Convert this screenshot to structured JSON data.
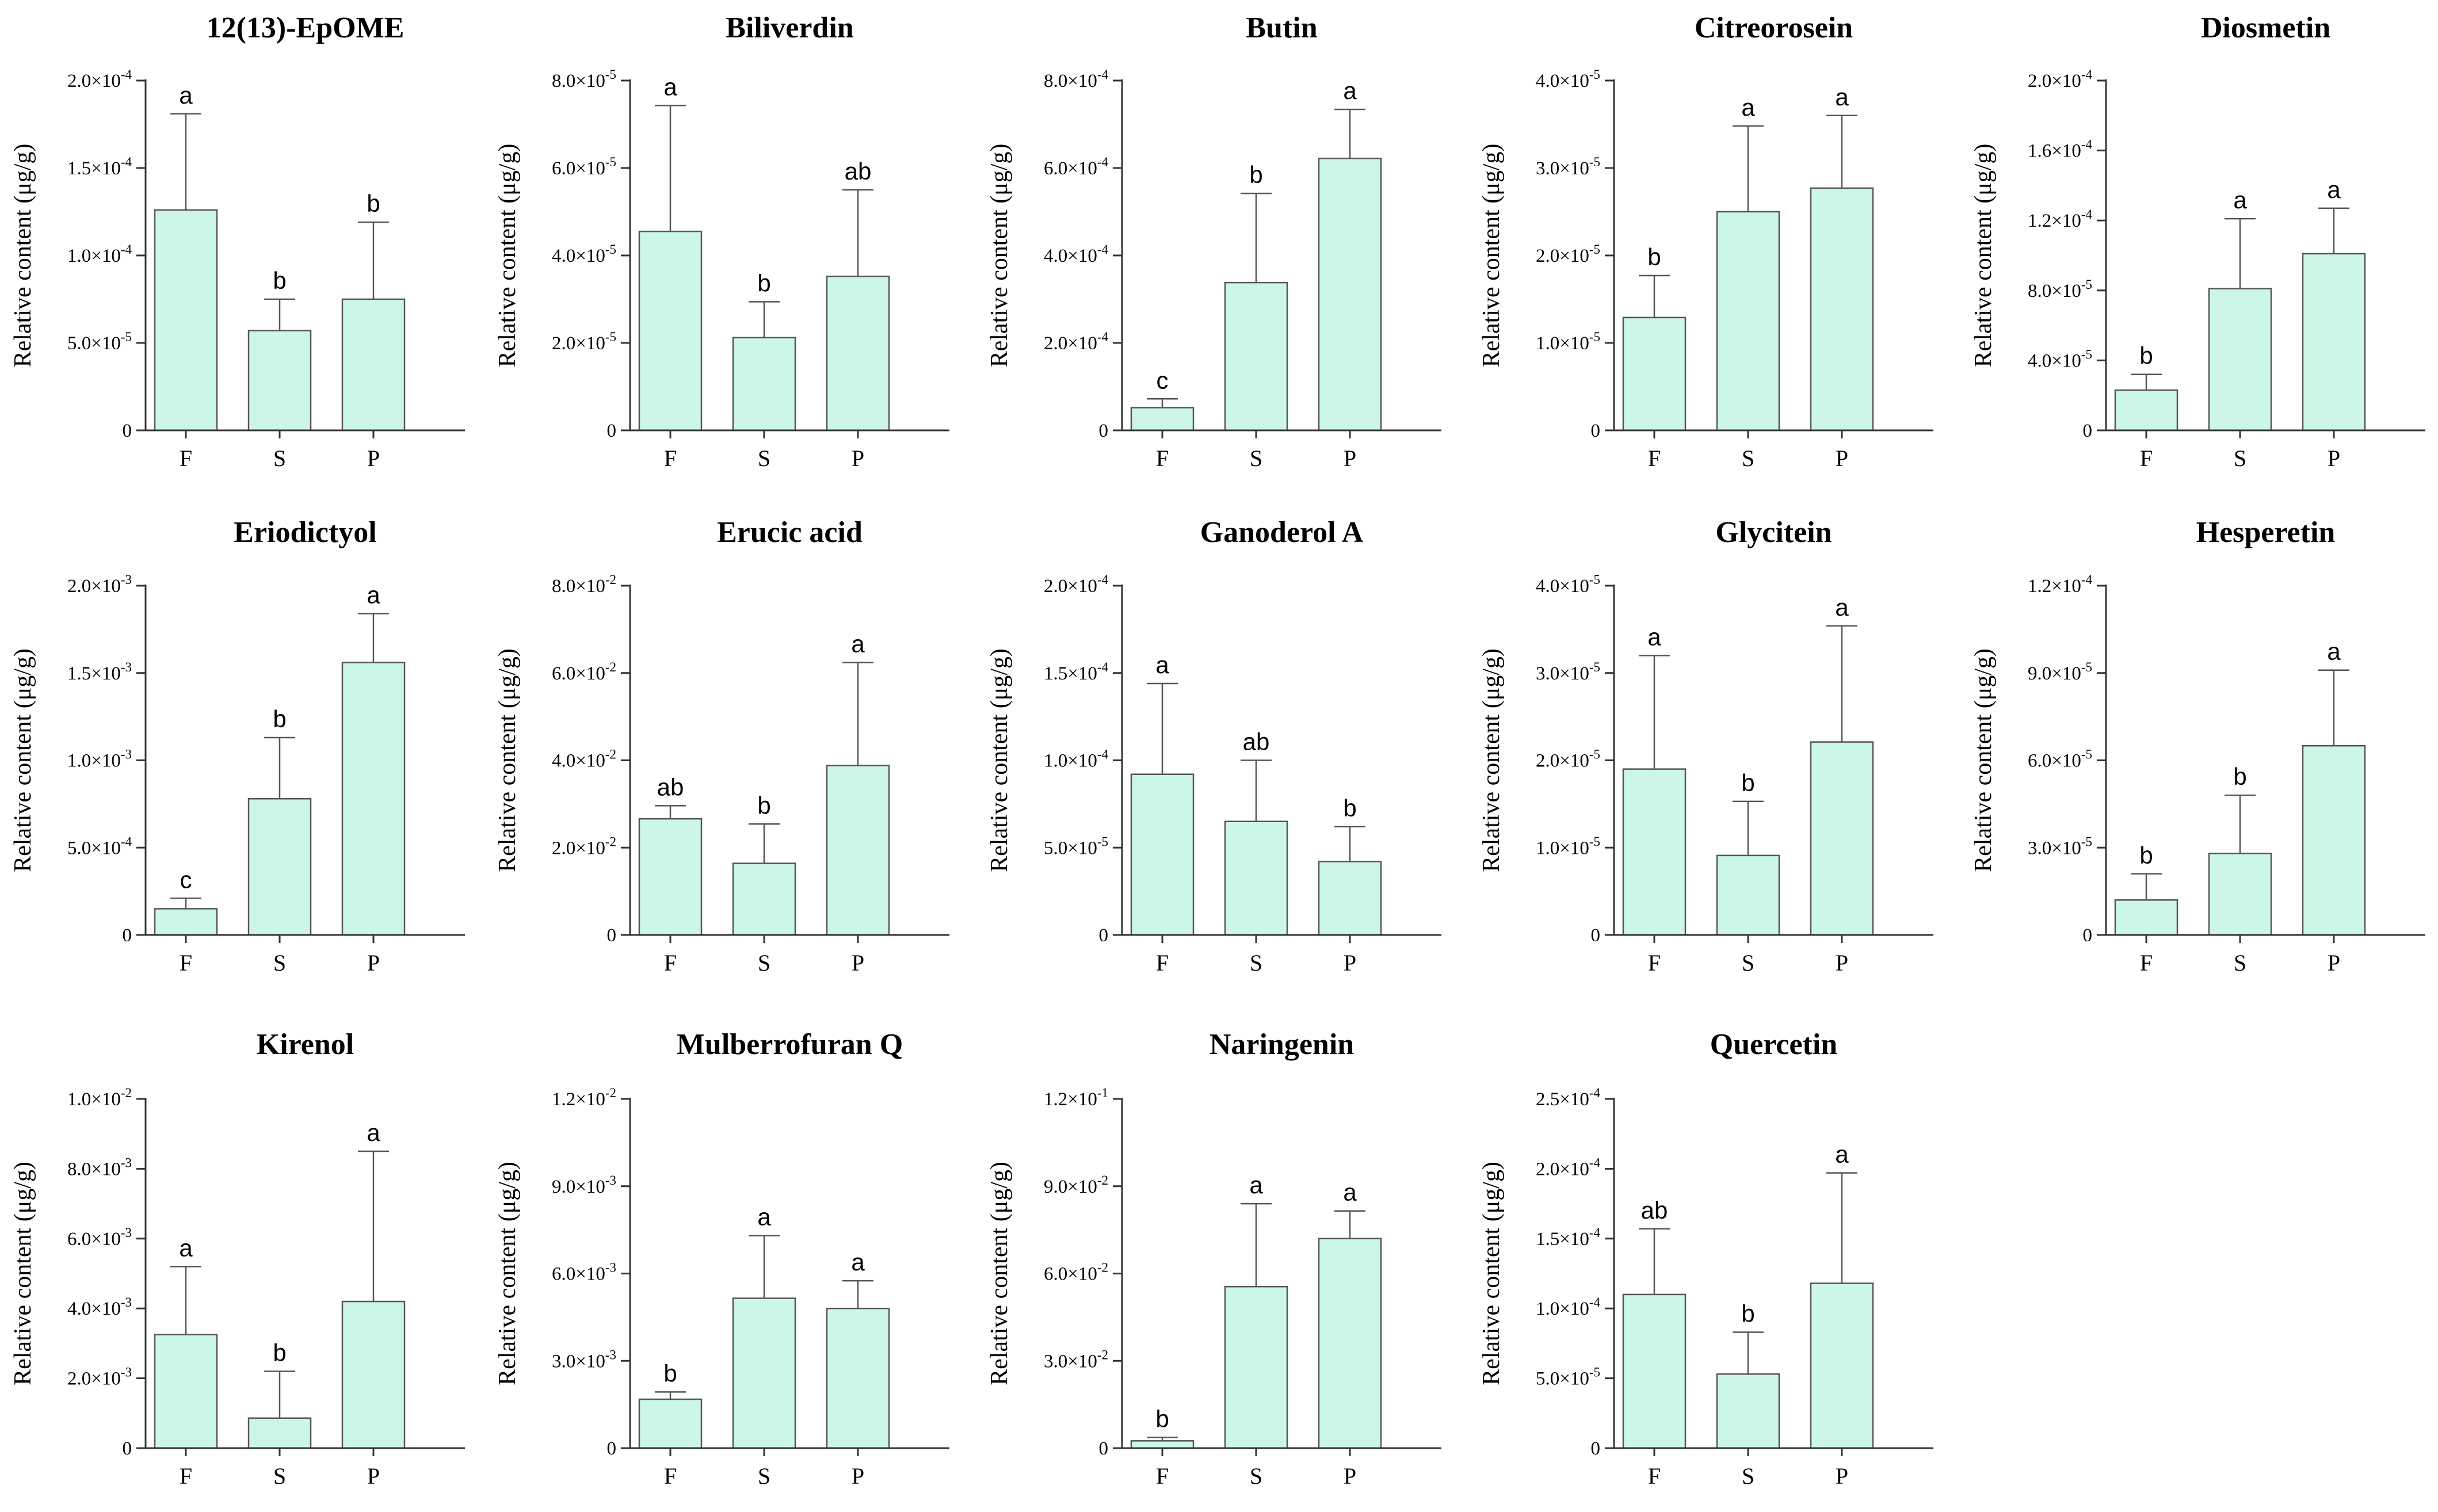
{
  "chart_data": [
    {
      "type": "bar",
      "title": "12(13)-EpOME",
      "ylabel": "Relative content (μg/g)",
      "categories": [
        "F",
        "S",
        "P"
      ],
      "exponent": -4,
      "yticks": [
        {
          "v": 0,
          "label": "0"
        },
        {
          "v": 0.5,
          "label": "5.0×10",
          "exp": "-5"
        },
        {
          "v": 1.0,
          "label": "1.0×10",
          "exp": "-4"
        },
        {
          "v": 1.5,
          "label": "1.5×10",
          "exp": "-4"
        },
        {
          "v": 2.0,
          "label": "2.0×10",
          "exp": "-4"
        }
      ],
      "ylim": [
        0,
        2.0
      ],
      "values": [
        1.26,
        0.57,
        0.75
      ],
      "errors": [
        0.55,
        0.18,
        0.44
      ],
      "letters": [
        "a",
        "b",
        "b"
      ]
    },
    {
      "type": "bar",
      "title": "Biliverdin",
      "ylabel": "Relative content (μg/g)",
      "categories": [
        "F",
        "S",
        "P"
      ],
      "yticks": [
        {
          "v": 0,
          "label": "0"
        },
        {
          "v": 2,
          "label": "2.0×10",
          "exp": "-5"
        },
        {
          "v": 4,
          "label": "4.0×10",
          "exp": "-5"
        },
        {
          "v": 6,
          "label": "6.0×10",
          "exp": "-5"
        },
        {
          "v": 8,
          "label": "8.0×10",
          "exp": "-5"
        }
      ],
      "ylim": [
        0,
        8
      ],
      "values": [
        4.55,
        2.12,
        3.52
      ],
      "errors": [
        2.88,
        0.82,
        1.98
      ],
      "letters": [
        "a",
        "b",
        "ab"
      ]
    },
    {
      "type": "bar",
      "title": "Butin",
      "ylabel": "Relative content (μg/g)",
      "categories": [
        "F",
        "S",
        "P"
      ],
      "yticks": [
        {
          "v": 0,
          "label": "0"
        },
        {
          "v": 2,
          "label": "2.0×10",
          "exp": "-4"
        },
        {
          "v": 4,
          "label": "4.0×10",
          "exp": "-4"
        },
        {
          "v": 6,
          "label": "6.0×10",
          "exp": "-4"
        },
        {
          "v": 8,
          "label": "8.0×10",
          "exp": "-4"
        }
      ],
      "ylim": [
        0,
        8
      ],
      "values": [
        0.52,
        3.38,
        6.22
      ],
      "errors": [
        0.2,
        2.04,
        1.12
      ],
      "letters": [
        "c",
        "b",
        "a"
      ]
    },
    {
      "type": "bar",
      "title": "Citreorosein",
      "ylabel": "Relative content (μg/g)",
      "categories": [
        "F",
        "S",
        "P"
      ],
      "yticks": [
        {
          "v": 0,
          "label": "0"
        },
        {
          "v": 1,
          "label": "1.0×10",
          "exp": "-5"
        },
        {
          "v": 2,
          "label": "2.0×10",
          "exp": "-5"
        },
        {
          "v": 3,
          "label": "3.0×10",
          "exp": "-5"
        },
        {
          "v": 4,
          "label": "4.0×10",
          "exp": "-5"
        }
      ],
      "ylim": [
        0,
        4
      ],
      "values": [
        1.29,
        2.5,
        2.77
      ],
      "errors": [
        0.48,
        0.98,
        0.83
      ],
      "letters": [
        "b",
        "a",
        "a"
      ]
    },
    {
      "type": "bar",
      "title": "Diosmetin",
      "ylabel": "Relative content (μg/g)",
      "categories": [
        "F",
        "S",
        "P"
      ],
      "yticks": [
        {
          "v": 0,
          "label": "0"
        },
        {
          "v": 4,
          "label": "4.0×10",
          "exp": "-5"
        },
        {
          "v": 8,
          "label": "8.0×10",
          "exp": "-5"
        },
        {
          "v": 12,
          "label": "1.2×10",
          "exp": "-4"
        },
        {
          "v": 16,
          "label": "1.6×10",
          "exp": "-4"
        },
        {
          "v": 20,
          "label": "2.0×10",
          "exp": "-4"
        }
      ],
      "ylim": [
        0,
        20
      ],
      "values": [
        2.3,
        8.1,
        10.1
      ],
      "errors": [
        0.9,
        4.0,
        2.6
      ],
      "letters": [
        "b",
        "a",
        "a"
      ]
    },
    {
      "type": "bar",
      "title": "Eriodictyol",
      "ylabel": "Relative content (μg/g)",
      "categories": [
        "F",
        "S",
        "P"
      ],
      "yticks": [
        {
          "v": 0,
          "label": "0"
        },
        {
          "v": 0.5,
          "label": "5.0×10",
          "exp": "-4"
        },
        {
          "v": 1.0,
          "label": "1.0×10",
          "exp": "-3"
        },
        {
          "v": 1.5,
          "label": "1.5×10",
          "exp": "-3"
        },
        {
          "v": 2.0,
          "label": "2.0×10",
          "exp": "-3"
        }
      ],
      "ylim": [
        0,
        2.0
      ],
      "values": [
        0.15,
        0.78,
        1.56
      ],
      "errors": [
        0.06,
        0.35,
        0.28
      ],
      "letters": [
        "c",
        "b",
        "a"
      ]
    },
    {
      "type": "bar",
      "title": "Erucic acid",
      "ylabel": "Relative content (μg/g)",
      "categories": [
        "F",
        "S",
        "P"
      ],
      "yticks": [
        {
          "v": 0,
          "label": "0"
        },
        {
          "v": 2,
          "label": "2.0×10",
          "exp": "-2"
        },
        {
          "v": 4,
          "label": "4.0×10",
          "exp": "-2"
        },
        {
          "v": 6,
          "label": "6.0×10",
          "exp": "-2"
        },
        {
          "v": 8,
          "label": "8.0×10",
          "exp": "-2"
        }
      ],
      "ylim": [
        0,
        8
      ],
      "values": [
        2.66,
        1.64,
        3.88
      ],
      "errors": [
        0.3,
        0.9,
        2.36
      ],
      "letters": [
        "ab",
        "b",
        "a"
      ]
    },
    {
      "type": "bar",
      "title": "Ganoderol A",
      "ylabel": "Relative content (μg/g)",
      "categories": [
        "F",
        "S",
        "P"
      ],
      "yticks": [
        {
          "v": 0,
          "label": "0"
        },
        {
          "v": 0.5,
          "label": "5.0×10",
          "exp": "-5"
        },
        {
          "v": 1.0,
          "label": "1.0×10",
          "exp": "-4"
        },
        {
          "v": 1.5,
          "label": "1.5×10",
          "exp": "-4"
        },
        {
          "v": 2.0,
          "label": "2.0×10",
          "exp": "-4"
        }
      ],
      "ylim": [
        0,
        2.0
      ],
      "values": [
        0.92,
        0.65,
        0.42
      ],
      "errors": [
        0.52,
        0.35,
        0.2
      ],
      "letters": [
        "a",
        "ab",
        "b"
      ]
    },
    {
      "type": "bar",
      "title": "Glycitein",
      "ylabel": "Relative content (μg/g)",
      "categories": [
        "F",
        "S",
        "P"
      ],
      "yticks": [
        {
          "v": 0,
          "label": "0"
        },
        {
          "v": 1,
          "label": "1.0×10",
          "exp": "-5"
        },
        {
          "v": 2,
          "label": "2.0×10",
          "exp": "-5"
        },
        {
          "v": 3,
          "label": "3.0×10",
          "exp": "-5"
        },
        {
          "v": 4,
          "label": "4.0×10",
          "exp": "-5"
        }
      ],
      "ylim": [
        0,
        4
      ],
      "values": [
        1.9,
        0.91,
        2.21
      ],
      "errors": [
        1.3,
        0.62,
        1.33
      ],
      "letters": [
        "a",
        "b",
        "a"
      ]
    },
    {
      "type": "bar",
      "title": "Hesperetin",
      "ylabel": "Relative content (μg/g)",
      "categories": [
        "F",
        "S",
        "P"
      ],
      "yticks": [
        {
          "v": 0,
          "label": "0"
        },
        {
          "v": 3,
          "label": "3.0×10",
          "exp": "-5"
        },
        {
          "v": 6,
          "label": "6.0×10",
          "exp": "-5"
        },
        {
          "v": 9,
          "label": "9.0×10",
          "exp": "-5"
        },
        {
          "v": 12,
          "label": "1.2×10",
          "exp": "-4"
        }
      ],
      "ylim": [
        0,
        12
      ],
      "values": [
        1.2,
        2.8,
        6.5
      ],
      "errors": [
        0.9,
        2.0,
        2.6
      ],
      "letters": [
        "b",
        "b",
        "a"
      ]
    },
    {
      "type": "bar",
      "title": "Kirenol",
      "ylabel": "Relative content (μg/g)",
      "categories": [
        "F",
        "S",
        "P"
      ],
      "yticks": [
        {
          "v": 0,
          "label": "0"
        },
        {
          "v": 2,
          "label": "2.0×10",
          "exp": "-3"
        },
        {
          "v": 4,
          "label": "4.0×10",
          "exp": "-3"
        },
        {
          "v": 6,
          "label": "6.0×10",
          "exp": "-3"
        },
        {
          "v": 8,
          "label": "8.0×10",
          "exp": "-3"
        },
        {
          "v": 10,
          "label": "1.0×10",
          "exp": "-2"
        }
      ],
      "ylim": [
        0,
        10
      ],
      "values": [
        3.25,
        0.86,
        4.2
      ],
      "errors": [
        1.95,
        1.34,
        4.3
      ],
      "letters": [
        "a",
        "b",
        "a"
      ]
    },
    {
      "type": "bar",
      "title": "Mulberrofuran Q",
      "ylabel": "Relative content (μg/g)",
      "categories": [
        "F",
        "S",
        "P"
      ],
      "yticks": [
        {
          "v": 0,
          "label": "0"
        },
        {
          "v": 3,
          "label": "3.0×10",
          "exp": "-3"
        },
        {
          "v": 6,
          "label": "6.0×10",
          "exp": "-3"
        },
        {
          "v": 9,
          "label": "9.0×10",
          "exp": "-3"
        },
        {
          "v": 12,
          "label": "1.2×10",
          "exp": "-2"
        }
      ],
      "ylim": [
        0,
        12
      ],
      "values": [
        1.68,
        5.15,
        4.8
      ],
      "errors": [
        0.25,
        2.15,
        0.95
      ],
      "letters": [
        "b",
        "a",
        "a"
      ]
    },
    {
      "type": "bar",
      "title": "Naringenin",
      "ylabel": "Relative content (μg/g)",
      "categories": [
        "F",
        "S",
        "P"
      ],
      "yticks": [
        {
          "v": 0,
          "label": "0"
        },
        {
          "v": 3,
          "label": "3.0×10",
          "exp": "-2"
        },
        {
          "v": 6,
          "label": "6.0×10",
          "exp": "-2"
        },
        {
          "v": 9,
          "label": "9.0×10",
          "exp": "-2"
        },
        {
          "v": 12,
          "label": "1.2×10",
          "exp": "-1"
        }
      ],
      "ylim": [
        0,
        12
      ],
      "values": [
        0.25,
        5.55,
        7.2
      ],
      "errors": [
        0.12,
        2.85,
        0.95
      ],
      "letters": [
        "b",
        "a",
        "a"
      ]
    },
    {
      "type": "bar",
      "title": "Quercetin",
      "ylabel": "Relative content (μg/g)",
      "categories": [
        "F",
        "S",
        "P"
      ],
      "yticks": [
        {
          "v": 0,
          "label": "0"
        },
        {
          "v": 0.5,
          "label": "5.0×10",
          "exp": "-5"
        },
        {
          "v": 1.0,
          "label": "1.0×10",
          "exp": "-4"
        },
        {
          "v": 1.5,
          "label": "1.5×10",
          "exp": "-4"
        },
        {
          "v": 2.0,
          "label": "2.0×10",
          "exp": "-4"
        },
        {
          "v": 2.5,
          "label": "2.5×10",
          "exp": "-4"
        }
      ],
      "ylim": [
        0,
        2.5
      ],
      "values": [
        1.1,
        0.53,
        1.18
      ],
      "errors": [
        0.47,
        0.3,
        0.79
      ],
      "letters": [
        "ab",
        "b",
        "a"
      ]
    }
  ],
  "colors": {
    "bar_fill": "#ccf7e6",
    "bar_stroke": "#555555",
    "axis": "#333333"
  }
}
